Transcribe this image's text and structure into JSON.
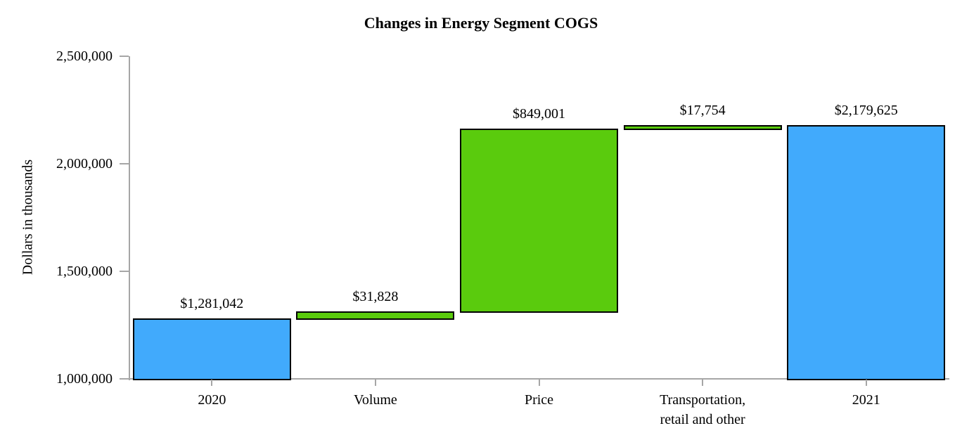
{
  "title": "Changes in Energy Segment COGS",
  "y_axis_label": "Dollars in thousands",
  "colors": {
    "total_bar": "#41AAFC",
    "change_bar": "#5ACB0D",
    "bar_border": "#000000",
    "axis": "#A6A6A6",
    "text": "#000000"
  },
  "chart_data": {
    "type": "bar",
    "subtype": "waterfall",
    "title": "Changes in Energy Segment COGS",
    "xlabel": "",
    "ylabel": "Dollars in thousands",
    "ylim": [
      1000000,
      2500000
    ],
    "y_ticks": [
      1000000,
      1500000,
      2000000,
      2500000
    ],
    "y_tick_labels": [
      "1,000,000",
      "1,500,000",
      "2,000,000",
      "2,500,000"
    ],
    "grid": false,
    "legend_position": "none",
    "categories": [
      "2020",
      "Volume",
      "Price",
      "Transportation,\nretail and other",
      "2021"
    ],
    "bars": [
      {
        "category": "2020",
        "start": 1000000,
        "end": 1281042,
        "value": 1281042,
        "label": "$1,281,042",
        "role": "total"
      },
      {
        "category": "Volume",
        "start": 1281042,
        "end": 1312870,
        "value": 31828,
        "label": "$31,828",
        "role": "change"
      },
      {
        "category": "Price",
        "start": 1312870,
        "end": 2161871,
        "value": 849001,
        "label": "$849,001",
        "role": "change"
      },
      {
        "category": "Transportation,\nretail and other",
        "start": 2161871,
        "end": 2179625,
        "value": 17754,
        "label": "$17,754",
        "role": "change"
      },
      {
        "category": "2021",
        "start": 1000000,
        "end": 2179625,
        "value": 2179625,
        "label": "$2,179,625",
        "role": "total"
      }
    ]
  }
}
